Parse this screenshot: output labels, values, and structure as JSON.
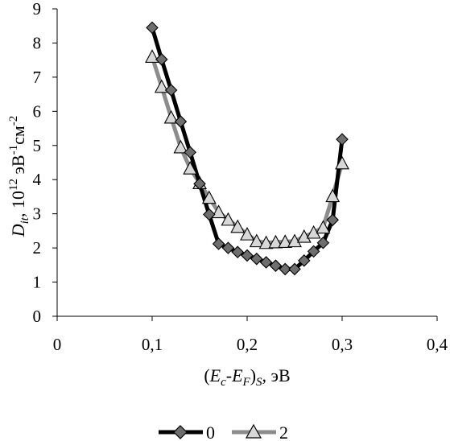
{
  "chart_data": {
    "type": "line",
    "x_ticks": [
      "0",
      "0,1",
      "0,2",
      "0,3",
      "0,4"
    ],
    "y_ticks": [
      "0",
      "1",
      "2",
      "3",
      "4",
      "5",
      "6",
      "7",
      "8",
      "9"
    ],
    "xlim": [
      0,
      0.4
    ],
    "ylim": [
      0,
      9
    ],
    "xlabel": {
      "open": "(",
      "e": "E",
      "c": "c",
      "minus": "-",
      "f": "E",
      "fsub": "F",
      "close": ")",
      "s": "S",
      "unit": ", эВ"
    },
    "ylabel": {
      "d": "D",
      "sub": "it",
      "mid": ", 10",
      "sup12": "12",
      "unit1": " эВ",
      "sup_m1": "-1",
      "unit2": "см",
      "sup_m2": "-2"
    },
    "grid": false,
    "legend_position": "bottom",
    "series": [
      {
        "name": "0",
        "color": "#000000",
        "marker": "diamond",
        "marker_color": "#6e6e6e",
        "x": [
          0.1,
          0.11,
          0.12,
          0.13,
          0.14,
          0.15,
          0.16,
          0.17,
          0.18,
          0.19,
          0.2,
          0.21,
          0.22,
          0.23,
          0.24,
          0.25,
          0.26,
          0.27,
          0.28,
          0.29,
          0.3
        ],
        "y": [
          8.45,
          7.52,
          6.62,
          5.7,
          4.8,
          3.88,
          2.98,
          2.12,
          2.0,
          1.88,
          1.78,
          1.68,
          1.58,
          1.48,
          1.38,
          1.38,
          1.63,
          1.9,
          2.15,
          2.82,
          5.18
        ]
      },
      {
        "name": "2",
        "color": "#8c8c8c",
        "marker": "triangle",
        "marker_color": "#d8d8d8",
        "x": [
          0.1,
          0.11,
          0.12,
          0.13,
          0.14,
          0.15,
          0.16,
          0.17,
          0.18,
          0.19,
          0.2,
          0.21,
          0.22,
          0.23,
          0.24,
          0.25,
          0.26,
          0.27,
          0.28,
          0.29,
          0.3
        ],
        "y": [
          7.6,
          6.72,
          5.82,
          4.95,
          4.33,
          3.9,
          3.47,
          3.05,
          2.83,
          2.62,
          2.4,
          2.2,
          2.15,
          2.17,
          2.18,
          2.2,
          2.33,
          2.45,
          2.6,
          3.52,
          4.48
        ]
      }
    ]
  }
}
